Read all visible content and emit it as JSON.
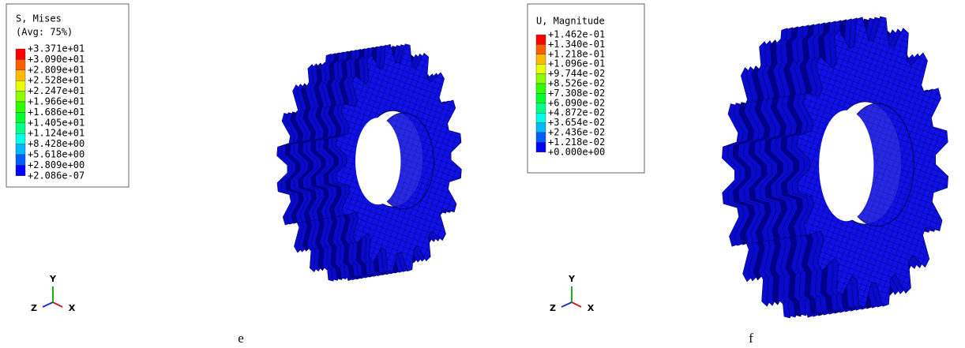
{
  "panels": [
    {
      "legend": {
        "title": "S, Mises",
        "subtitle": "(Avg: 75%)",
        "values": [
          "+3.371e+01",
          "+3.090e+01",
          "+2.809e+01",
          "+2.528e+01",
          "+2.247e+01",
          "+1.966e+01",
          "+1.686e+01",
          "+1.405e+01",
          "+1.124e+01",
          "+8.428e+00",
          "+5.618e+00",
          "+2.809e+00",
          "+2.086e-07"
        ]
      },
      "axes": {
        "y": "Y",
        "z": "Z",
        "x": "X"
      },
      "caption": "e"
    },
    {
      "legend": {
        "title": "U, Magnitude",
        "values": [
          "+1.462e-01",
          "+1.340e-01",
          "+1.218e-01",
          "+1.096e-01",
          "+9.744e-02",
          "+8.526e-02",
          "+7.308e-02",
          "+6.090e-02",
          "+4.872e-02",
          "+3.654e-02",
          "+2.436e-02",
          "+1.218e-02",
          "+0.000e+00"
        ]
      },
      "axes": {
        "y": "Y",
        "z": "Z",
        "x": "X"
      },
      "caption": "f"
    }
  ],
  "band_colors": [
    "#ff0000",
    "#ff5d00",
    "#ffb900",
    "#e8ff00",
    "#8bff00",
    "#2eff00",
    "#00ff2e",
    "#00ff8b",
    "#00ffe8",
    "#00b9ff",
    "#005dff",
    "#0000ff"
  ]
}
